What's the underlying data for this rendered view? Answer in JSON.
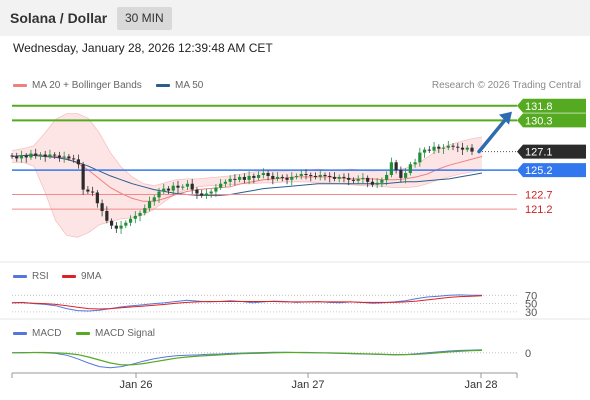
{
  "header": {
    "title": "Solana / Dollar",
    "timeframe": "30 MIN"
  },
  "datetime": "Wednesday, January 28, 2026 12:39:48 AM CET",
  "credit": "Research © 2026 Trading Central",
  "colors": {
    "bollinger": "#f08080",
    "ma50": "#2b5c8f",
    "rsi": "#5577dd",
    "rsi_ma": "#dd2222",
    "macd": "#5577dd",
    "macd_signal": "#55aa22",
    "resistance": "#55aa22",
    "support": "#3377ee",
    "minor_level": "#f28a8a",
    "arrow": "#2e6bb0",
    "current": "#2b2b2b"
  },
  "chart_data": [
    {
      "type": "candlestick",
      "panel": "price",
      "legend": [
        {
          "name": "MA 20 + Bollinger Bands"
        },
        {
          "name": "MA 50"
        }
      ],
      "x_ticks": [
        "Jan 26",
        "Jan 27",
        "Jan 28"
      ],
      "ylim": [
        117.0,
        132.6
      ],
      "close": [
        126.6,
        126.4,
        126.7,
        126.5,
        126.9,
        126.7,
        126.8,
        126.6,
        126.8,
        126.7,
        126.5,
        126.6,
        126.4,
        126.3,
        125.8,
        123.2,
        123.0,
        122.9,
        121.8,
        121.0,
        120.0,
        119.5,
        119.2,
        119.5,
        119.8,
        120.2,
        120.5,
        120.8,
        121.3,
        122.0,
        122.4,
        123.0,
        123.3,
        123.1,
        123.6,
        123.4,
        123.5,
        123.8,
        123.2,
        122.8,
        122.6,
        122.8,
        123.0,
        123.4,
        123.8,
        124.0,
        124.3,
        124.2,
        124.5,
        124.2,
        124.6,
        124.4,
        124.7,
        124.9,
        124.6,
        124.3,
        124.5,
        124.4,
        124.2,
        124.5,
        124.6,
        124.8,
        124.7,
        124.6,
        124.5,
        124.7,
        124.6,
        124.5,
        124.3,
        124.5,
        124.4,
        124.2,
        124.1,
        124.3,
        124.4,
        124.0,
        123.7,
        123.9,
        124.2,
        124.7,
        126.0,
        125.2,
        124.4,
        124.9,
        125.8,
        126.0,
        127.0,
        127.3,
        127.2,
        127.6,
        127.4,
        127.5,
        127.7,
        127.6,
        127.5,
        127.3,
        127.5,
        127.1
      ],
      "series": [
        {
          "name": "MA 20",
          "values": [
            126.6,
            126.7,
            126.8,
            126.7,
            126.6,
            126.4,
            125.9,
            125.2,
            124.3,
            123.4,
            122.8,
            122.3,
            122.0,
            122.0,
            122.3,
            122.7,
            123.0,
            123.2,
            123.3,
            123.4,
            123.5,
            123.8,
            124.0,
            124.2,
            124.3,
            124.4,
            124.5,
            124.5,
            124.5,
            124.5,
            124.4,
            124.3,
            124.3,
            124.3,
            124.2,
            124.2,
            124.3,
            124.5,
            124.8,
            125.3,
            125.7,
            126.0,
            126.3,
            126.6
          ]
        },
        {
          "name": "Upper band",
          "values": [
            127.2,
            127.4,
            127.7,
            129.0,
            130.4,
            131.0,
            131.0,
            130.5,
            129.0,
            127.0,
            125.5,
            124.5,
            123.8,
            123.6,
            123.9,
            124.2,
            124.3,
            124.3,
            124.4,
            124.5,
            124.6,
            124.8,
            125.0,
            125.1,
            125.1,
            125.1,
            125.2,
            125.2,
            125.3,
            125.2,
            125.2,
            125.3,
            125.2,
            125.1,
            125.2,
            125.2,
            125.4,
            125.8,
            126.5,
            127.3,
            127.8,
            128.1,
            128.4,
            128.6
          ]
        },
        {
          "name": "Lower band",
          "values": [
            126.0,
            126.0,
            125.6,
            123.0,
            120.0,
            118.5,
            118.3,
            118.8,
            119.6,
            119.9,
            120.2,
            120.3,
            120.6,
            121.2,
            122.0,
            122.8,
            123.2,
            123.5,
            123.6,
            123.6,
            123.7,
            123.8,
            123.8,
            123.9,
            123.9,
            124.0,
            124.0,
            124.0,
            123.9,
            123.9,
            123.8,
            123.7,
            123.6,
            123.6,
            123.5,
            123.4,
            123.4,
            123.5,
            123.8,
            124.2,
            124.5,
            124.8,
            125.0,
            125.2
          ]
        },
        {
          "name": "MA 50",
          "values": [
            126.6,
            126.7,
            126.7,
            126.6,
            126.5,
            126.3,
            126.0,
            125.6,
            125.1,
            124.6,
            124.2,
            123.8,
            123.5,
            123.2,
            123.0,
            122.8,
            122.7,
            122.6,
            122.6,
            122.6,
            122.7,
            122.9,
            123.1,
            123.3,
            123.4,
            123.5,
            123.6,
            123.7,
            123.8,
            123.8,
            123.8,
            123.8,
            123.8,
            123.8,
            123.8,
            123.9,
            124.0,
            124.0,
            124.1,
            124.2,
            124.3,
            124.5,
            124.7,
            124.9
          ]
        }
      ],
      "levels": [
        {
          "value": 131.8,
          "label": "131.8",
          "style": "resistance"
        },
        {
          "value": 130.3,
          "label": "130.3",
          "style": "resistance"
        },
        {
          "value": 127.1,
          "label": "127.1",
          "style": "current"
        },
        {
          "value": 125.2,
          "label": "125.2",
          "style": "support"
        },
        {
          "value": 122.7,
          "label": "122.7",
          "style": "minor"
        },
        {
          "value": 121.2,
          "label": "121.2",
          "style": "minor"
        }
      ],
      "arrow_target": 131.2
    },
    {
      "type": "line",
      "panel": "rsi",
      "legend": [
        {
          "name": "RSI"
        },
        {
          "name": "9MA"
        }
      ],
      "levels": [
        {
          "value": 70,
          "label": "70"
        },
        {
          "value": 50,
          "label": "50"
        },
        {
          "value": 30,
          "label": "30"
        }
      ],
      "ylim": [
        20,
        95
      ],
      "series": [
        {
          "name": "RSI",
          "values": [
            52,
            53,
            50,
            48,
            45,
            38,
            33,
            32,
            34,
            38,
            42,
            45,
            47,
            50,
            52,
            55,
            58,
            56,
            54,
            55,
            57,
            55,
            52,
            54,
            56,
            55,
            53,
            54,
            55,
            53,
            52,
            54,
            53,
            51,
            52,
            54,
            57,
            62,
            66,
            68,
            70,
            71,
            70,
            70
          ]
        },
        {
          "name": "9MA",
          "values": [
            52,
            52,
            51,
            50,
            48,
            45,
            41,
            38,
            37,
            38,
            40,
            42,
            44,
            46,
            48,
            51,
            53,
            54,
            55,
            55,
            55,
            55,
            55,
            55,
            55,
            54,
            54,
            54,
            54,
            54,
            54,
            54,
            53,
            53,
            53,
            53,
            54,
            56,
            59,
            62,
            65,
            67,
            68,
            69
          ]
        }
      ]
    },
    {
      "type": "line",
      "panel": "macd",
      "legend": [
        {
          "name": "MACD"
        },
        {
          "name": "MACD Signal"
        }
      ],
      "levels": [
        {
          "value": 0,
          "label": "0"
        }
      ],
      "ylim": [
        -3.2,
        1.8
      ],
      "series": [
        {
          "name": "MACD",
          "values": [
            0.0,
            0.05,
            0.05,
            0.0,
            -0.1,
            -0.4,
            -1.0,
            -1.7,
            -2.3,
            -2.5,
            -2.3,
            -1.9,
            -1.4,
            -1.0,
            -0.7,
            -0.5,
            -0.4,
            -0.35,
            -0.25,
            -0.2,
            -0.1,
            -0.05,
            0.0,
            0.05,
            0.1,
            0.1,
            0.05,
            0.0,
            0.0,
            -0.05,
            -0.1,
            -0.15,
            -0.2,
            -0.25,
            -0.3,
            -0.35,
            -0.3,
            -0.15,
            0.0,
            0.15,
            0.3,
            0.4,
            0.45,
            0.5
          ]
        },
        {
          "name": "MACD Signal",
          "values": [
            0.0,
            0.0,
            0.05,
            0.05,
            0.0,
            -0.1,
            -0.3,
            -0.7,
            -1.2,
            -1.7,
            -2.0,
            -2.0,
            -1.8,
            -1.5,
            -1.2,
            -0.9,
            -0.7,
            -0.55,
            -0.45,
            -0.35,
            -0.25,
            -0.15,
            -0.1,
            -0.05,
            0.0,
            0.05,
            0.05,
            0.05,
            0.0,
            0.0,
            -0.05,
            -0.1,
            -0.15,
            -0.2,
            -0.25,
            -0.3,
            -0.3,
            -0.25,
            -0.15,
            0.0,
            0.15,
            0.25,
            0.35,
            0.4
          ]
        }
      ]
    }
  ]
}
